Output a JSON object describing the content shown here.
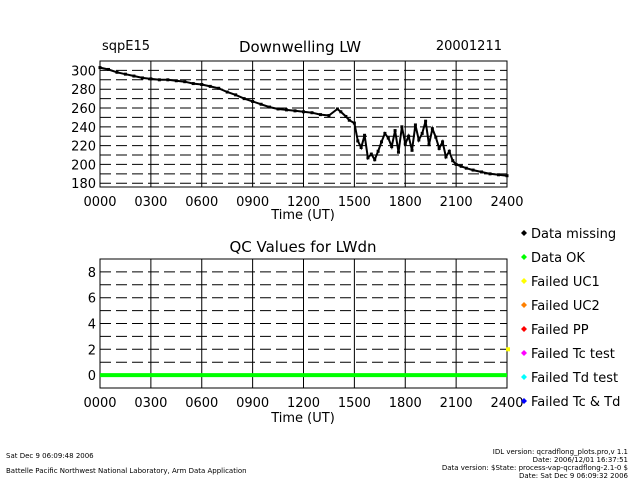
{
  "chart_data": [
    {
      "type": "scatter",
      "site": "sqpE15",
      "title": "Downwelling LW",
      "date": "20001211",
      "xlabel": "Time (UT)",
      "ylabel": "",
      "xlim": [
        0,
        24
      ],
      "ylim": [
        176,
        310
      ],
      "x_ticks": [
        "0000",
        "0300",
        "0600",
        "0900",
        "1200",
        "1500",
        "1800",
        "2100",
        "2400"
      ],
      "y_ticks": [
        180,
        200,
        220,
        240,
        260,
        280,
        300
      ],
      "y_gridlines": [
        190,
        210,
        230,
        250,
        270,
        290
      ],
      "grid": true,
      "series": [
        {
          "name": "LWdn",
          "color": "#000000",
          "x": [
            0,
            0.5,
            1,
            1.5,
            2,
            2.5,
            3,
            3.5,
            4,
            4.5,
            5,
            5.5,
            6,
            6.5,
            7,
            7.5,
            8,
            8.5,
            9,
            9.5,
            10,
            10.5,
            11,
            11.5,
            12,
            12.5,
            13,
            13.5,
            14,
            14.2,
            14.5,
            14.7,
            15,
            15.2,
            15.4,
            15.6,
            15.8,
            16,
            16.2,
            16.4,
            16.6,
            16.8,
            17,
            17.2,
            17.4,
            17.6,
            17.8,
            18,
            18.2,
            18.4,
            18.6,
            18.8,
            19,
            19.2,
            19.4,
            19.6,
            19.8,
            20,
            20.2,
            20.4,
            20.6,
            20.8,
            21,
            21.3,
            21.6,
            22,
            22.5,
            23,
            23.5,
            24
          ],
          "y": [
            303,
            301,
            298,
            296,
            294,
            292,
            291,
            290,
            290,
            289,
            288,
            286,
            285,
            283,
            281,
            277,
            274,
            270,
            267,
            264,
            261,
            259,
            258,
            257,
            256,
            255,
            253,
            252,
            259,
            256,
            251,
            247,
            244,
            225,
            218,
            231,
            207,
            211,
            205,
            214,
            224,
            233,
            228,
            219,
            236,
            213,
            240,
            222,
            230,
            215,
            242,
            226,
            233,
            246,
            221,
            238,
            229,
            217,
            224,
            208,
            214,
            204,
            200,
            198,
            196,
            194,
            192,
            190,
            189,
            188
          ]
        }
      ]
    },
    {
      "type": "scatter",
      "title": "QC Values for LWdn",
      "xlabel": "Time (UT)",
      "ylabel": "",
      "xlim": [
        0,
        24
      ],
      "ylim": [
        -1,
        9
      ],
      "x_ticks": [
        "0000",
        "0300",
        "0600",
        "0900",
        "1200",
        "1500",
        "1800",
        "2100",
        "2400"
      ],
      "y_ticks": [
        0,
        2,
        4,
        6,
        8
      ],
      "y_gridlines": [
        1,
        3,
        5,
        7
      ],
      "grid": true,
      "series": [
        {
          "name": "QC value",
          "color": "#00ff00",
          "x": [
            0,
            24
          ],
          "y": [
            0,
            0
          ]
        }
      ],
      "end_marker": {
        "x": 24,
        "y": 2,
        "color": "#ffff00"
      },
      "legend": {
        "position": "right",
        "entries": [
          {
            "label": "Data missing",
            "color": "#000000"
          },
          {
            "label": "Data OK",
            "color": "#00ff00"
          },
          {
            "label": "Failed UC1",
            "color": "#ffff00"
          },
          {
            "label": "Failed UC2",
            "color": "#ff8000"
          },
          {
            "label": "Failed PP",
            "color": "#ff0000"
          },
          {
            "label": "Failed Tc test",
            "color": "#ff00ff"
          },
          {
            "label": "Failed Td test",
            "color": "#00ffff"
          },
          {
            "label": "Failed Tc & Td",
            "color": "#0000ff"
          }
        ]
      }
    }
  ],
  "footer": {
    "left_date": "Sat Dec  9 06:09:48 2006",
    "left_org": "Battelle Pacific Northwest National Laboratory, Arm Data Application",
    "right_lines": [
      "IDL version: qcradflong_plots.pro,v 1.1",
      "Date: 2006/12/01 16:37:51",
      "Data version: $State: process-vap-qcradflong-2.1-0 $",
      "Date: Sat Dec  9 06:09:32 2006"
    ]
  }
}
